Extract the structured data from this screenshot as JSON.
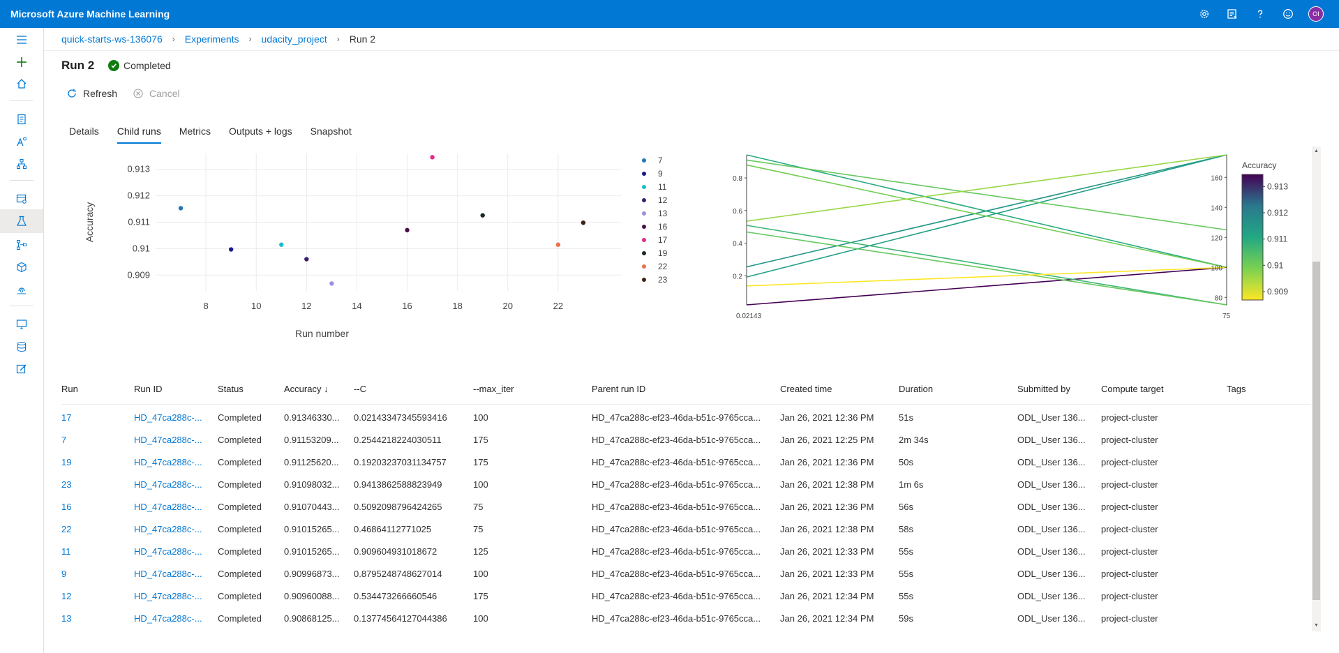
{
  "app": {
    "title": "Microsoft Azure Machine Learning",
    "user_initials": "OI"
  },
  "topbar_icons": [
    "gear-icon",
    "feedback-list-icon",
    "help-icon",
    "smiley-icon"
  ],
  "breadcrumb": [
    "quick-starts-ws-136076",
    "Experiments",
    "udacity_project",
    "Run 2"
  ],
  "run": {
    "title": "Run 2",
    "status": "Completed"
  },
  "commands": {
    "refresh": "Refresh",
    "cancel": "Cancel"
  },
  "tabs": [
    "Details",
    "Child runs",
    "Metrics",
    "Outputs + logs",
    "Snapshot"
  ],
  "chart_data": [
    {
      "type": "scatter",
      "xlabel": "Run number",
      "ylabel": "Accuracy",
      "xlim": [
        6,
        24.5
      ],
      "ylim": [
        0.9084,
        0.9136
      ],
      "xticks": [
        8,
        10,
        12,
        14,
        16,
        18,
        20,
        22
      ],
      "yticks": [
        0.909,
        0.91,
        0.911,
        0.912,
        0.913
      ],
      "ytick_labels": [
        "0.909",
        "0.91",
        "0.911",
        "0.912",
        "0.913"
      ],
      "points": [
        {
          "run": "7",
          "x": 7,
          "y": 0.91153,
          "color": "#1f77b4"
        },
        {
          "run": "9",
          "x": 9,
          "y": 0.90997,
          "color": "#1a1a8c"
        },
        {
          "run": "11",
          "x": 11,
          "y": 0.91015,
          "color": "#17becf"
        },
        {
          "run": "12",
          "x": 12,
          "y": 0.9096,
          "color": "#3b1e6e"
        },
        {
          "run": "13",
          "x": 13,
          "y": 0.90868,
          "color": "#9b8fe0"
        },
        {
          "run": "16",
          "x": 16,
          "y": 0.9107,
          "color": "#4a1248"
        },
        {
          "run": "17",
          "x": 17,
          "y": 0.91346,
          "color": "#e7298a"
        },
        {
          "run": "19",
          "x": 19,
          "y": 0.91126,
          "color": "#1c2a22"
        },
        {
          "run": "22",
          "x": 22,
          "y": 0.91015,
          "color": "#ef6f4c"
        },
        {
          "run": "23",
          "x": 23,
          "y": 0.91098,
          "color": "#3d2214"
        }
      ]
    },
    {
      "type": "parallel-coordinates",
      "left_axis": {
        "ticks": [
          "0.8",
          "0.6",
          "0.4",
          "0.2"
        ],
        "tick_values": [
          0.8,
          0.6,
          0.4,
          0.2
        ],
        "bottom_label": "0.02143",
        "range": [
          0.02143,
          0.94139
        ]
      },
      "right_axis": {
        "ticks": [
          "160",
          "140",
          "120",
          "100",
          "80"
        ],
        "tick_values": [
          160,
          140,
          120,
          100,
          80
        ],
        "bottom_label": "75",
        "range": [
          75,
          175
        ]
      },
      "colorbar": {
        "title": "Accuracy",
        "ticks": [
          "0.913",
          "0.912",
          "0.911",
          "0.91",
          "0.909"
        ],
        "tick_values": [
          0.913,
          0.912,
          0.911,
          0.91,
          0.909
        ],
        "range": [
          0.90868,
          0.91346
        ]
      },
      "lines": [
        {
          "c": 0.02143,
          "max_iter": 100,
          "accuracy": 0.91346
        },
        {
          "c": 0.25442,
          "max_iter": 175,
          "accuracy": 0.91153
        },
        {
          "c": 0.19203,
          "max_iter": 175,
          "accuracy": 0.91126
        },
        {
          "c": 0.94139,
          "max_iter": 100,
          "accuracy": 0.91098
        },
        {
          "c": 0.50921,
          "max_iter": 75,
          "accuracy": 0.9107
        },
        {
          "c": 0.46864,
          "max_iter": 75,
          "accuracy": 0.91015
        },
        {
          "c": 0.9096,
          "max_iter": 125,
          "accuracy": 0.91015
        },
        {
          "c": 0.87952,
          "max_iter": 100,
          "accuracy": 0.90997
        },
        {
          "c": 0.53447,
          "max_iter": 175,
          "accuracy": 0.9096
        },
        {
          "c": 0.13775,
          "max_iter": 100,
          "accuracy": 0.90868
        }
      ]
    }
  ],
  "table": {
    "headers": [
      "Run",
      "Run ID",
      "Status",
      "Accuracy ↓",
      "--C",
      "--max_iter",
      "Parent run ID",
      "Created time",
      "Duration",
      "Submitted by",
      "Compute target",
      "Tags"
    ],
    "rows": [
      [
        "17",
        "HD_47ca288c-...",
        "Completed",
        "0.91346330...",
        "0.02143347345593416",
        "100",
        "HD_47ca288c-ef23-46da-b51c-9765cca...",
        "Jan 26, 2021 12:36 PM",
        "51s",
        "ODL_User 136...",
        "project-cluster"
      ],
      [
        "7",
        "HD_47ca288c-...",
        "Completed",
        "0.91153209...",
        "0.2544218224030511",
        "175",
        "HD_47ca288c-ef23-46da-b51c-9765cca...",
        "Jan 26, 2021 12:25 PM",
        "2m 34s",
        "ODL_User 136...",
        "project-cluster"
      ],
      [
        "19",
        "HD_47ca288c-...",
        "Completed",
        "0.91125620...",
        "0.19203237031134757",
        "175",
        "HD_47ca288c-ef23-46da-b51c-9765cca...",
        "Jan 26, 2021 12:36 PM",
        "50s",
        "ODL_User 136...",
        "project-cluster"
      ],
      [
        "23",
        "HD_47ca288c-...",
        "Completed",
        "0.91098032...",
        "0.9413862588823949",
        "100",
        "HD_47ca288c-ef23-46da-b51c-9765cca...",
        "Jan 26, 2021 12:38 PM",
        "1m 6s",
        "ODL_User 136...",
        "project-cluster"
      ],
      [
        "16",
        "HD_47ca288c-...",
        "Completed",
        "0.91070443...",
        "0.5092098796424265",
        "75",
        "HD_47ca288c-ef23-46da-b51c-9765cca...",
        "Jan 26, 2021 12:36 PM",
        "56s",
        "ODL_User 136...",
        "project-cluster"
      ],
      [
        "22",
        "HD_47ca288c-...",
        "Completed",
        "0.91015265...",
        "0.46864112771025",
        "75",
        "HD_47ca288c-ef23-46da-b51c-9765cca...",
        "Jan 26, 2021 12:38 PM",
        "58s",
        "ODL_User 136...",
        "project-cluster"
      ],
      [
        "11",
        "HD_47ca288c-...",
        "Completed",
        "0.91015265...",
        "0.909604931018672",
        "125",
        "HD_47ca288c-ef23-46da-b51c-9765cca...",
        "Jan 26, 2021 12:33 PM",
        "55s",
        "ODL_User 136...",
        "project-cluster"
      ],
      [
        "9",
        "HD_47ca288c-...",
        "Completed",
        "0.90996873...",
        "0.8795248748627014",
        "100",
        "HD_47ca288c-ef23-46da-b51c-9765cca...",
        "Jan 26, 2021 12:33 PM",
        "55s",
        "ODL_User 136...",
        "project-cluster"
      ],
      [
        "12",
        "HD_47ca288c-...",
        "Completed",
        "0.90960088...",
        "0.534473266660546",
        "175",
        "HD_47ca288c-ef23-46da-b51c-9765cca...",
        "Jan 26, 2021 12:34 PM",
        "55s",
        "ODL_User 136...",
        "project-cluster"
      ],
      [
        "13",
        "HD_47ca288c-...",
        "Completed",
        "0.90868125...",
        "0.13774564127044386",
        "100",
        "HD_47ca288c-ef23-46da-b51c-9765cca...",
        "Jan 26, 2021 12:34 PM",
        "59s",
        "ODL_User 136...",
        "project-cluster"
      ]
    ]
  }
}
